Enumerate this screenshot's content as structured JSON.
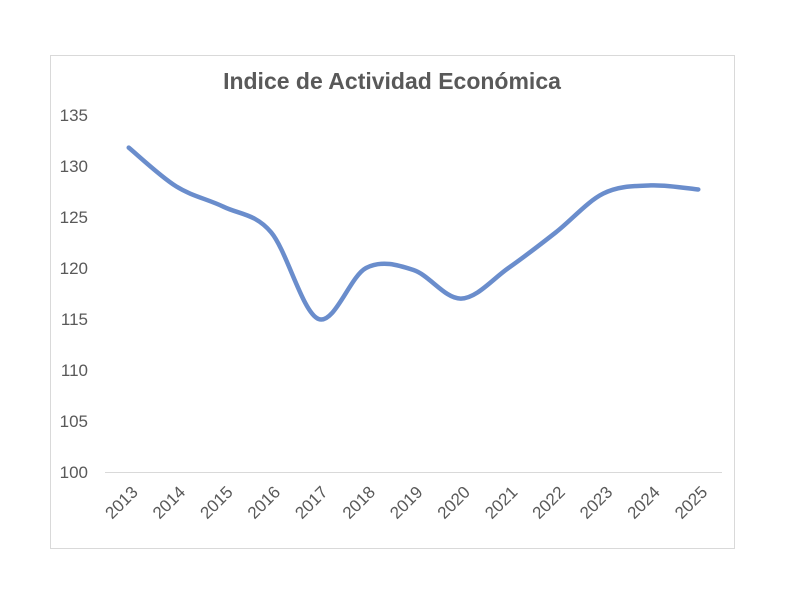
{
  "chart_data": {
    "type": "line",
    "title": "Indice  de Actividad Económica",
    "xlabel": "",
    "ylabel": "",
    "categories": [
      "2013",
      "2014",
      "2015",
      "2016",
      "2017",
      "2018",
      "2019",
      "2020",
      "2021",
      "2022",
      "2023",
      "2024",
      "2025"
    ],
    "yticks": [
      "100",
      "105",
      "110",
      "115",
      "120",
      "125",
      "130",
      "135"
    ],
    "ylim": [
      100,
      135
    ],
    "grid": false,
    "legend": "none",
    "series": [
      {
        "color": "#6a8dcc",
        "smooth": true,
        "values": [
          131.8,
          128.0,
          126.0,
          123.5,
          115.0,
          120.0,
          119.8,
          117.0,
          120.0,
          123.5,
          127.3,
          128.1,
          127.7
        ]
      }
    ]
  }
}
